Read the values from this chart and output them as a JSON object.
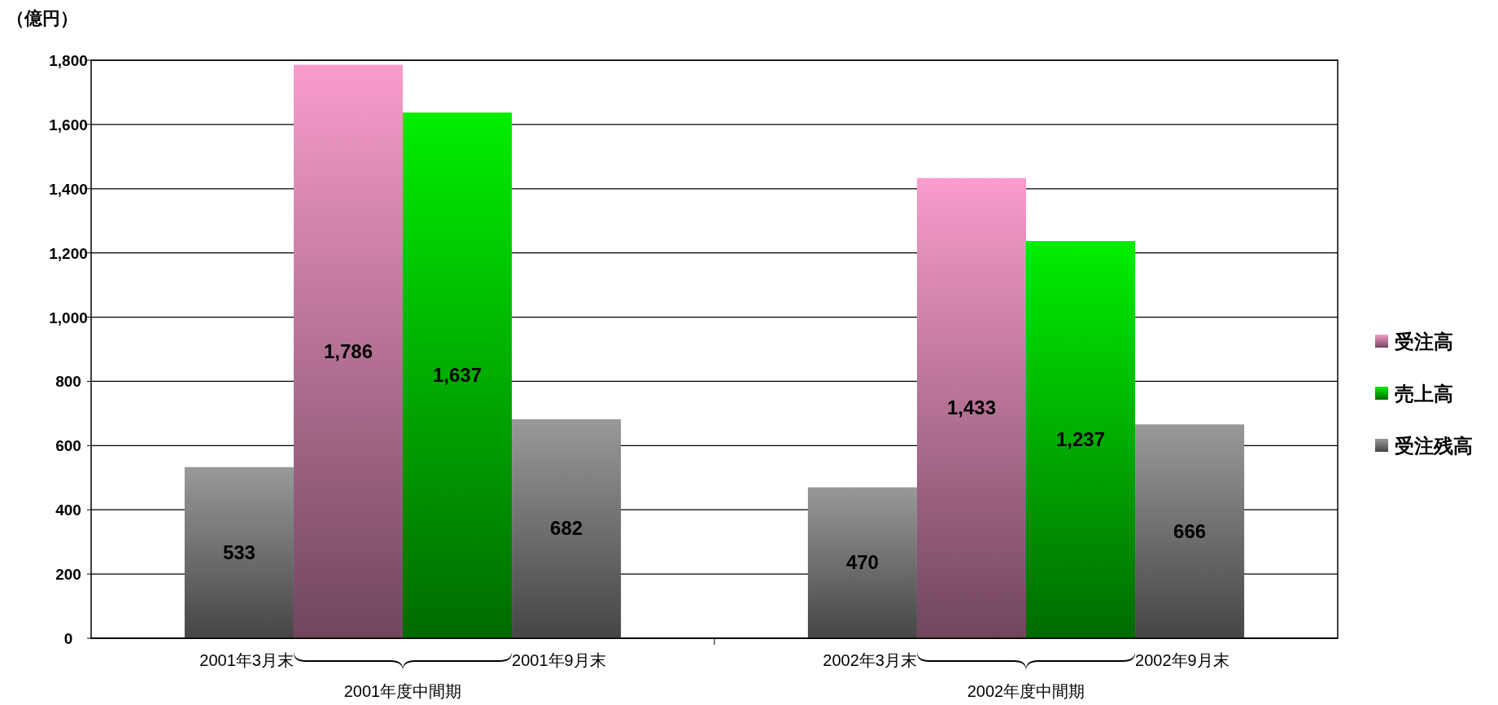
{
  "chart_data": {
    "type": "bar",
    "ylabel": "（億円）",
    "categories": [
      "2001年3月末",
      null,
      null,
      "2001年9月末",
      "2002年3月末",
      null,
      null,
      "2002年9月末"
    ],
    "series": [
      {
        "name": "受注高",
        "color": "#f99ccc",
        "values": [
          null,
          1786,
          null,
          null,
          null,
          1433,
          null,
          null
        ],
        "value_labels": [
          null,
          "1,786",
          null,
          null,
          null,
          "1,433",
          null,
          null
        ]
      },
      {
        "name": "売上高",
        "color": "#00ee00",
        "values": [
          null,
          null,
          1637,
          null,
          null,
          null,
          1237,
          null
        ],
        "value_labels": [
          null,
          null,
          "1,637",
          null,
          null,
          null,
          "1,237",
          null
        ]
      },
      {
        "name": "受注残高",
        "color": "#999999",
        "values": [
          533,
          null,
          null,
          682,
          470,
          null,
          null,
          666
        ],
        "value_labels": [
          "533",
          null,
          null,
          "682",
          "470",
          null,
          null,
          "666"
        ]
      }
    ],
    "ylim": [
      0,
      1800
    ],
    "yticks": [
      0,
      200,
      400,
      600,
      800,
      {
        "value": 1000,
        "label": "1,000"
      },
      {
        "value": 1200,
        "label": "1,200"
      },
      {
        "value": 1400,
        "label": "1,400"
      },
      {
        "value": 1600,
        "label": "1,600"
      },
      {
        "value": 1800,
        "label": "1,800"
      }
    ],
    "grid": "y",
    "legend": "right",
    "annotations": [
      "2001年度中間期",
      "2002年度中間期"
    ]
  }
}
